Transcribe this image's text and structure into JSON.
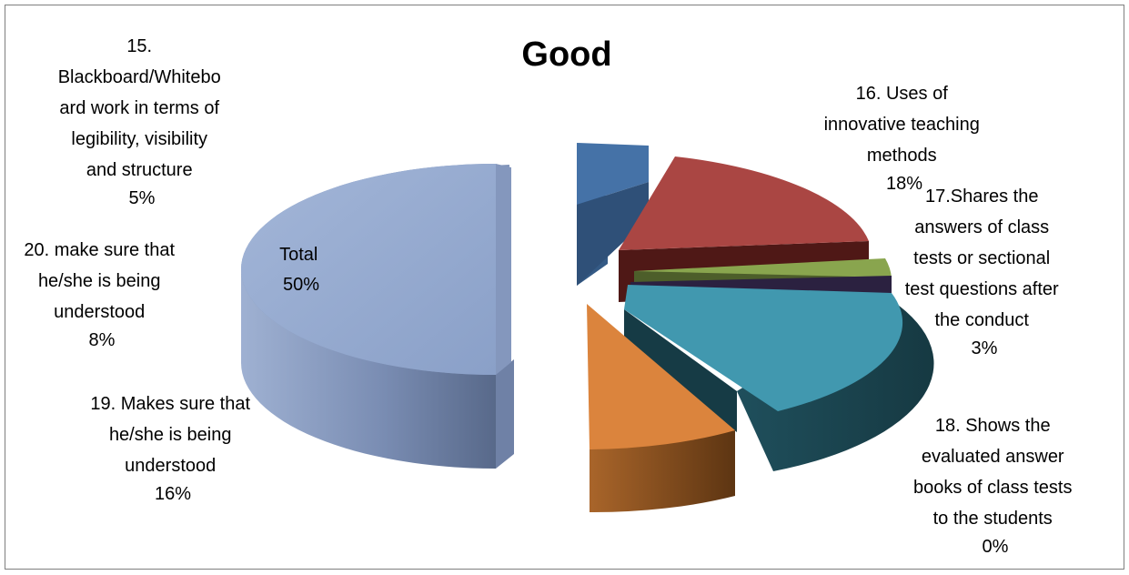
{
  "chart_data": {
    "type": "pie",
    "title": "Good",
    "style": "3d-exploded",
    "slices": [
      {
        "key": "s15",
        "label_lines": [
          "15.",
          "Blackboard/Whitebo",
          "ard work in terms of",
          "legibility, visibility",
          "and structure"
        ],
        "percent_text": "5%",
        "value": 5,
        "color": "#4572a7"
      },
      {
        "key": "s16",
        "label_lines": [
          "16. Uses of",
          "innovative teaching",
          "methods"
        ],
        "percent_text": "18%",
        "value": 18,
        "color": "#aa4643"
      },
      {
        "key": "s17",
        "label_lines": [
          "17.Shares the",
          "answers of class",
          "tests or sectional",
          "test questions after",
          "the conduct"
        ],
        "percent_text": "3%",
        "value": 3,
        "color": "#89a54e"
      },
      {
        "key": "s18",
        "label_lines": [
          "18. Shows the",
          "evaluated answer",
          "books of class tests",
          "to the students"
        ],
        "percent_text": "0%",
        "value": 0,
        "color": "#71588f"
      },
      {
        "key": "s19",
        "label_lines": [
          "19. Makes sure that",
          "he/she is being",
          "understood"
        ],
        "percent_text": "16%",
        "value": 16,
        "color": "#4198af"
      },
      {
        "key": "s20",
        "label_lines": [
          "20. make sure that",
          "he/she is being",
          "understood"
        ],
        "percent_text": "8%",
        "value": 8,
        "color": "#db843d"
      },
      {
        "key": "total",
        "label_lines": [
          "Total"
        ],
        "percent_text": "50%",
        "value": 50,
        "color": "#93a9cf"
      }
    ]
  }
}
